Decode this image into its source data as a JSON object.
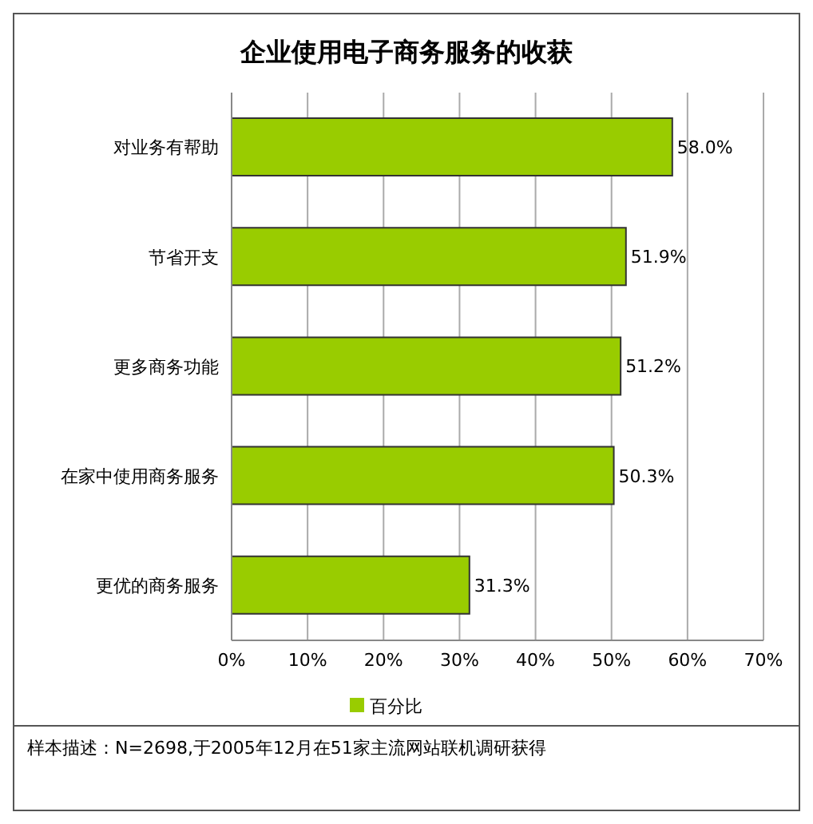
{
  "chart_data": {
    "type": "bar",
    "orientation": "horizontal",
    "title": "企业使用电子商务服务的收获",
    "categories": [
      "对业务有帮助",
      "节省开支",
      "更多商务功能",
      "在家中使用商务服务",
      "更优的商务服务"
    ],
    "series": [
      {
        "name": "百分比",
        "color": "#99cc00",
        "values": [
          58.0,
          51.9,
          51.2,
          50.3,
          31.3
        ],
        "value_labels": [
          "58.0%",
          "51.9%",
          "51.2%",
          "50.3%",
          "31.3%"
        ]
      }
    ],
    "xlim": [
      0,
      70
    ],
    "xticks": [
      {
        "value": 0,
        "label": "0%"
      },
      {
        "value": 10,
        "label": "10%"
      },
      {
        "value": 20,
        "label": "20%"
      },
      {
        "value": 30,
        "label": "30%"
      },
      {
        "value": 40,
        "label": "40%"
      },
      {
        "value": 50,
        "label": "50%"
      },
      {
        "value": 60,
        "label": "60%"
      },
      {
        "value": 70,
        "label": "70%"
      }
    ],
    "grid": "x",
    "legend": "bottom",
    "annotations": [
      "样本描述：N=2698,于2005年12月在51家主流网站联机调研获得"
    ]
  }
}
